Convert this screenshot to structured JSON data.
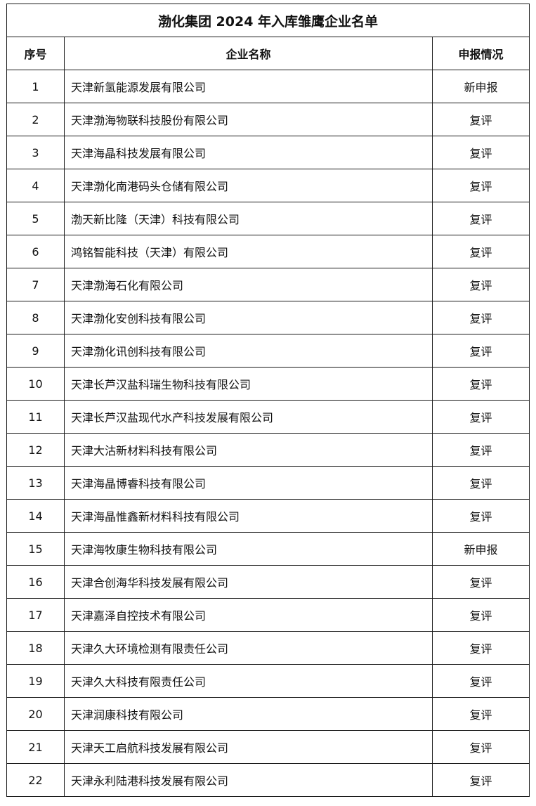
{
  "title": "渤化集团 2024 年入库雏鹰企业名单",
  "headers": {
    "no": "序号",
    "name": "企业名称",
    "status": "申报情况"
  },
  "rows": [
    {
      "no": "1",
      "name": "天津新氢能源发展有限公司",
      "status": "新申报"
    },
    {
      "no": "2",
      "name": "天津渤海物联科技股份有限公司",
      "status": "复评"
    },
    {
      "no": "3",
      "name": "天津海晶科技发展有限公司",
      "status": "复评"
    },
    {
      "no": "4",
      "name": "天津渤化南港码头仓储有限公司",
      "status": "复评"
    },
    {
      "no": "5",
      "name": "渤天新比隆（天津）科技有限公司",
      "status": "复评"
    },
    {
      "no": "6",
      "name": "鸿铭智能科技（天津）有限公司",
      "status": "复评"
    },
    {
      "no": "7",
      "name": "天津渤海石化有限公司",
      "status": "复评"
    },
    {
      "no": "8",
      "name": "天津渤化安创科技有限公司",
      "status": "复评"
    },
    {
      "no": "9",
      "name": "天津渤化讯创科技有限公司",
      "status": "复评"
    },
    {
      "no": "10",
      "name": "天津长芦汉盐科瑞生物科技有限公司",
      "status": "复评"
    },
    {
      "no": "11",
      "name": "天津长芦汉盐现代水产科技发展有限公司",
      "status": "复评"
    },
    {
      "no": "12",
      "name": "天津大沽新材料科技有限公司",
      "status": "复评"
    },
    {
      "no": "13",
      "name": "天津海晶博睿科技有限公司",
      "status": "复评"
    },
    {
      "no": "14",
      "name": "天津海晶惟鑫新材料科技有限公司",
      "status": "复评"
    },
    {
      "no": "15",
      "name": "天津海牧康生物科技有限公司",
      "status": "新申报"
    },
    {
      "no": "16",
      "name": "天津合创海华科技发展有限公司",
      "status": "复评"
    },
    {
      "no": "17",
      "name": "天津嘉泽自控技术有限公司",
      "status": "复评"
    },
    {
      "no": "18",
      "name": "天津久大环境检测有限责任公司",
      "status": "复评"
    },
    {
      "no": "19",
      "name": "天津久大科技有限责任公司",
      "status": "复评"
    },
    {
      "no": "20",
      "name": "天津润康科技有限公司",
      "status": "复评"
    },
    {
      "no": "21",
      "name": "天津天工启航科技发展有限公司",
      "status": "复评"
    },
    {
      "no": "22",
      "name": "天津永利陆港科技发展有限公司",
      "status": "复评"
    }
  ]
}
